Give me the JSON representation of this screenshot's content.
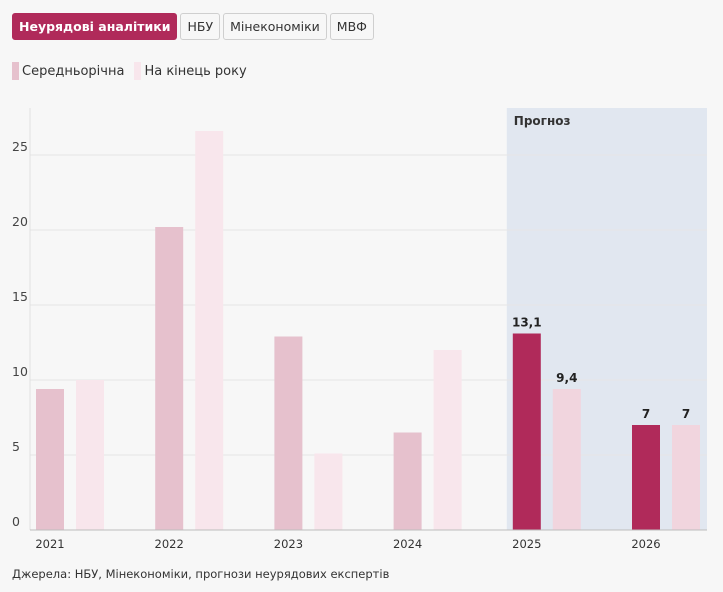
{
  "tabs": [
    {
      "label": "Неурядові аналітики",
      "active": true
    },
    {
      "label": "НБУ",
      "active": false
    },
    {
      "label": "Мінекономіки",
      "active": false
    },
    {
      "label": "МВФ",
      "active": false
    }
  ],
  "legend": [
    {
      "label": "Середньорічна",
      "color": "#e6c1cd"
    },
    {
      "label": "На кінець року",
      "color": "#f8e6ec"
    }
  ],
  "source": "Джерела: НБУ, Мінекономіки, прогнози неурядових експертів",
  "colors": {
    "forecast_bg": "#e1e7f0",
    "forecast_avg": "#b02a5a",
    "forecast_end": "#f1d5de",
    "grid": "#e6e6e6"
  },
  "chart_data": {
    "type": "bar",
    "categories": [
      "2021",
      "2022",
      "2023",
      "2024",
      "2025",
      "2026"
    ],
    "series": [
      {
        "name": "Середньорічна",
        "values": [
          9.4,
          20.2,
          12.9,
          6.5,
          13.1,
          7
        ]
      },
      {
        "name": "На кінець року",
        "values": [
          10,
          26.6,
          5.1,
          12,
          9.4,
          7
        ]
      }
    ],
    "data_labels": {
      "2025": [
        "13,1",
        "9,4"
      ],
      "2026": [
        "7",
        "7"
      ]
    },
    "forecast_label": "Прогноз",
    "forecast_from": "2025",
    "yticks": [
      0,
      5,
      10,
      15,
      20,
      25
    ],
    "ylim": [
      0,
      28
    ]
  }
}
